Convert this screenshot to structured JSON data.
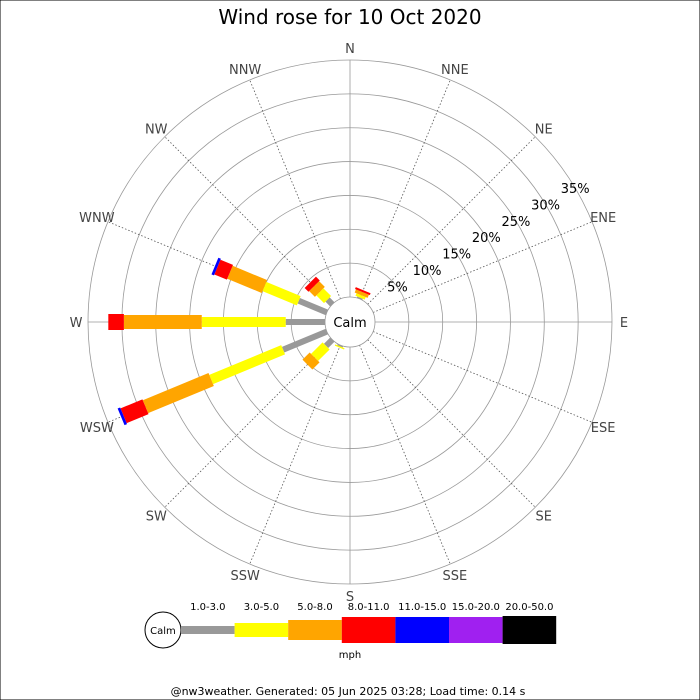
{
  "chart_data": {
    "type": "wind-rose",
    "title": "Wind rose for 10 Oct 2020",
    "directions": [
      "N",
      "NNE",
      "NE",
      "ENE",
      "E",
      "ESE",
      "SE",
      "SSE",
      "S",
      "SSW",
      "SW",
      "WSW",
      "W",
      "WNW",
      "NW",
      "NNW"
    ],
    "ring_labels": [
      "5%",
      "10%",
      "15%",
      "20%",
      "25%",
      "30%",
      "35%"
    ],
    "ring_max_percent": 35,
    "center_label": "Calm",
    "speed_bins": [
      {
        "label": "1.0-3.0",
        "color": "#999999"
      },
      {
        "label": "3.0-5.0",
        "color": "#ffff00"
      },
      {
        "label": "5.0-8.0",
        "color": "#ffa500"
      },
      {
        "label": "8.0-11.0",
        "color": "#ff0000"
      },
      {
        "label": "11.0-15.0",
        "color": "#0000ff"
      },
      {
        "label": "15.0-20.0",
        "color": "#a020f0"
      },
      {
        "label": "20.0-50.0",
        "color": "#000000"
      }
    ],
    "units": "mph",
    "grid": true,
    "series": [
      {
        "direction": "NNE",
        "values": [
          0.2,
          0.4,
          0.5,
          0.3,
          0,
          0,
          0
        ]
      },
      {
        "direction": "NW",
        "values": [
          1.0,
          1.6,
          1.2,
          0.8,
          0,
          0,
          0
        ]
      },
      {
        "direction": "WNW",
        "values": [
          4.5,
          5.5,
          5.5,
          2.0,
          0.4,
          0,
          0
        ]
      },
      {
        "direction": "W",
        "values": [
          5.8,
          12.4,
          11.5,
          2.3,
          0,
          0,
          0
        ]
      },
      {
        "direction": "WSW",
        "values": [
          7.0,
          11.5,
          10.5,
          3.5,
          0.4,
          0,
          0
        ]
      },
      {
        "direction": "SW",
        "values": [
          1.3,
          2.4,
          1.5,
          0,
          0,
          0,
          0
        ]
      },
      {
        "direction": "SSW",
        "values": [
          0.2,
          0.2,
          0,
          0,
          0,
          0,
          0
        ]
      }
    ]
  },
  "footer": "@nw3weather. Generated: 05 Jun 2025 03:28; Load time: 0.14 s"
}
